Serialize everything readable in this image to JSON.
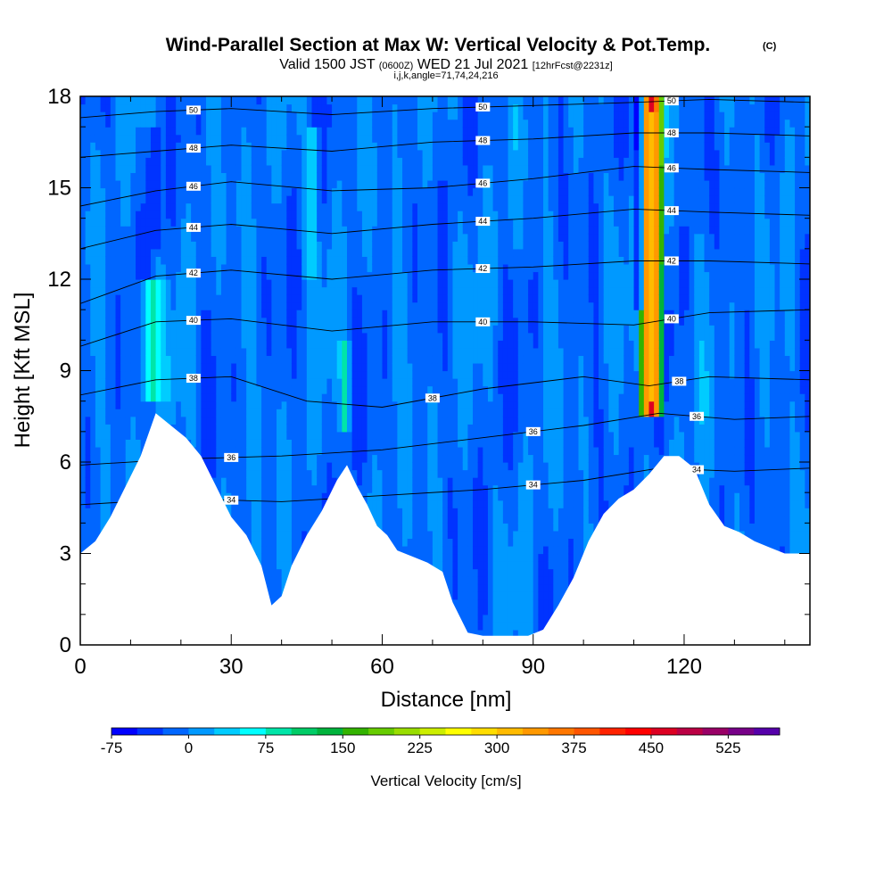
{
  "chart_data": {
    "type": "heatmap",
    "title": "Wind-Parallel Section at Max W: Vertical Velocity & Pot.Temp.",
    "title_mark": "(C)",
    "subtitle_parts": [
      "Valid 1500 JST ",
      "(0600Z)",
      " WED 21 Jul 2021 ",
      "[12hrFcst@2231z]"
    ],
    "subtitle2": "i,j,k,angle=71,74,24,216",
    "xlabel": "Distance [nm]",
    "ylabel": "Height [Kft MSL]",
    "xlim": [
      0,
      145
    ],
    "ylim": [
      0,
      18
    ],
    "x_ticks": [
      0,
      30,
      60,
      90,
      120
    ],
    "y_ticks": [
      0,
      3,
      6,
      9,
      12,
      15,
      18
    ],
    "x_tick_labels": [
      "0",
      "30",
      "60",
      "90",
      "120"
    ],
    "y_tick_labels": [
      "0",
      "3",
      "6",
      "9",
      "12",
      "15",
      "18"
    ],
    "colorbar": {
      "label": "Vertical Velocity [cm/s]",
      "levels": [
        -75,
        -50,
        -25,
        0,
        25,
        50,
        75,
        100,
        125,
        150,
        175,
        200,
        225,
        250,
        275,
        300,
        325,
        350,
        375,
        400,
        425,
        450,
        475,
        500,
        525,
        550,
        575
      ],
      "tick_values": [
        -75,
        0,
        75,
        150,
        225,
        300,
        375,
        450,
        525
      ],
      "tick_labels": [
        "-75",
        "0",
        "75",
        "150",
        "225",
        "300",
        "375",
        "450",
        "525"
      ],
      "colors": [
        "#0000ff",
        "#0033ff",
        "#0066ff",
        "#0099ff",
        "#00ccff",
        "#00ffff",
        "#00e5a8",
        "#00cc66",
        "#00b33c",
        "#33b300",
        "#66cc00",
        "#99dd00",
        "#ccee00",
        "#ffff00",
        "#ffdd00",
        "#ffbb00",
        "#ff9900",
        "#ff7700",
        "#ff5500",
        "#ff2200",
        "#ff0000",
        "#dd0022",
        "#bb0044",
        "#990066",
        "#770088",
        "#5500aa"
      ]
    },
    "terrain": {
      "x": [
        0,
        3,
        6,
        9,
        12,
        15,
        18,
        21,
        24,
        27,
        30,
        33,
        36,
        38,
        40,
        42,
        45,
        48,
        51,
        53,
        55,
        57,
        59,
        61,
        63,
        66,
        69,
        72,
        74,
        77,
        80,
        83,
        86,
        89,
        92,
        95,
        98,
        101,
        104,
        107,
        110,
        113,
        116,
        119,
        122,
        125,
        128,
        131,
        134,
        137,
        140,
        145
      ],
      "height_kft": [
        3.0,
        3.4,
        4.2,
        5.2,
        6.2,
        7.6,
        7.2,
        6.8,
        6.2,
        5.2,
        4.2,
        3.6,
        2.6,
        1.3,
        1.6,
        2.6,
        3.6,
        4.4,
        5.4,
        5.9,
        5.2,
        4.6,
        3.9,
        3.6,
        3.1,
        2.9,
        2.7,
        2.4,
        1.4,
        0.4,
        0.3,
        0.3,
        0.3,
        0.3,
        0.5,
        1.3,
        2.2,
        3.4,
        4.3,
        4.8,
        5.1,
        5.6,
        6.2,
        6.2,
        5.8,
        4.6,
        3.9,
        3.7,
        3.4,
        3.2,
        3.0,
        3.0
      ]
    },
    "theta_contours": [
      {
        "value": 34,
        "label": "34",
        "points": [
          [
            0,
            4.6
          ],
          [
            20,
            4.8
          ],
          [
            40,
            4.7
          ],
          [
            60,
            4.9
          ],
          [
            80,
            5.1
          ],
          [
            100,
            5.4
          ],
          [
            115,
            5.8
          ],
          [
            130,
            5.7
          ],
          [
            145,
            5.8
          ]
        ]
      },
      {
        "value": 36,
        "label": "36",
        "points": [
          [
            0,
            5.9
          ],
          [
            20,
            6.1
          ],
          [
            40,
            6.2
          ],
          [
            60,
            6.4
          ],
          [
            80,
            6.8
          ],
          [
            100,
            7.2
          ],
          [
            115,
            7.6
          ],
          [
            130,
            7.4
          ],
          [
            145,
            7.5
          ]
        ]
      },
      {
        "value": 38,
        "label": "38",
        "points": [
          [
            0,
            8.2
          ],
          [
            15,
            8.7
          ],
          [
            30,
            8.8
          ],
          [
            45,
            8.0
          ],
          [
            60,
            7.8
          ],
          [
            80,
            8.4
          ],
          [
            100,
            8.8
          ],
          [
            113,
            8.5
          ],
          [
            125,
            8.8
          ],
          [
            145,
            8.7
          ]
        ]
      },
      {
        "value": 40,
        "label": "40",
        "points": [
          [
            0,
            9.8
          ],
          [
            15,
            10.6
          ],
          [
            30,
            10.7
          ],
          [
            50,
            10.3
          ],
          [
            70,
            10.6
          ],
          [
            90,
            10.6
          ],
          [
            110,
            10.5
          ],
          [
            125,
            10.9
          ],
          [
            145,
            11.0
          ]
        ]
      },
      {
        "value": 42,
        "label": "42",
        "points": [
          [
            0,
            11.2
          ],
          [
            15,
            12.1
          ],
          [
            30,
            12.3
          ],
          [
            50,
            12.0
          ],
          [
            70,
            12.3
          ],
          [
            90,
            12.4
          ],
          [
            110,
            12.6
          ],
          [
            125,
            12.6
          ],
          [
            145,
            12.5
          ]
        ]
      },
      {
        "value": 44,
        "label": "44",
        "points": [
          [
            0,
            13.0
          ],
          [
            15,
            13.6
          ],
          [
            30,
            13.8
          ],
          [
            50,
            13.5
          ],
          [
            70,
            13.8
          ],
          [
            90,
            14.0
          ],
          [
            110,
            14.3
          ],
          [
            125,
            14.2
          ],
          [
            145,
            14.1
          ]
        ]
      },
      {
        "value": 46,
        "label": "46",
        "points": [
          [
            0,
            14.4
          ],
          [
            15,
            14.9
          ],
          [
            30,
            15.2
          ],
          [
            50,
            14.9
          ],
          [
            70,
            15.0
          ],
          [
            90,
            15.3
          ],
          [
            110,
            15.7
          ],
          [
            125,
            15.6
          ],
          [
            145,
            15.5
          ]
        ]
      },
      {
        "value": 48,
        "label": "48",
        "points": [
          [
            0,
            16.0
          ],
          [
            15,
            16.2
          ],
          [
            30,
            16.4
          ],
          [
            50,
            16.2
          ],
          [
            70,
            16.5
          ],
          [
            90,
            16.6
          ],
          [
            110,
            16.8
          ],
          [
            125,
            16.8
          ],
          [
            145,
            16.7
          ]
        ]
      },
      {
        "value": 50,
        "label": "50",
        "points": [
          [
            0,
            17.3
          ],
          [
            15,
            17.5
          ],
          [
            30,
            17.6
          ],
          [
            50,
            17.4
          ],
          [
            70,
            17.6
          ],
          [
            90,
            17.7
          ],
          [
            110,
            17.8
          ],
          [
            125,
            17.9
          ],
          [
            145,
            17.8
          ]
        ]
      }
    ],
    "velocity_features": [
      {
        "kind": "band",
        "x_center": 113.5,
        "y_range": [
          7.5,
          18
        ],
        "half_width_nm": 2.0,
        "peak_cm_s": 450
      },
      {
        "kind": "band",
        "x_center": 113.5,
        "y_range": [
          8.0,
          17.5
        ],
        "half_width_nm": 0.9,
        "peak_cm_s": 300
      },
      {
        "kind": "band",
        "x_center": 111.0,
        "y_range": [
          11,
          18
        ],
        "half_width_nm": 0.8,
        "peak_cm_s": -75
      },
      {
        "kind": "band",
        "x_center": 117.0,
        "y_range": [
          9.5,
          11
        ],
        "half_width_nm": 0.8,
        "peak_cm_s": -50
      },
      {
        "kind": "band",
        "x_center": 14.5,
        "y_range": [
          8.0,
          12
        ],
        "half_width_nm": 2.2,
        "peak_cm_s": 75
      },
      {
        "kind": "band",
        "x_center": 46.0,
        "y_range": [
          12,
          17
        ],
        "half_width_nm": 1.2,
        "peak_cm_s": 50
      },
      {
        "kind": "band",
        "x_center": 52.5,
        "y_range": [
          7.0,
          10
        ],
        "half_width_nm": 0.8,
        "peak_cm_s": 75
      },
      {
        "kind": "band",
        "x_center": 14.5,
        "y_range": [
          13,
          17
        ],
        "half_width_nm": 1.2,
        "peak_cm_s": -50
      }
    ]
  }
}
